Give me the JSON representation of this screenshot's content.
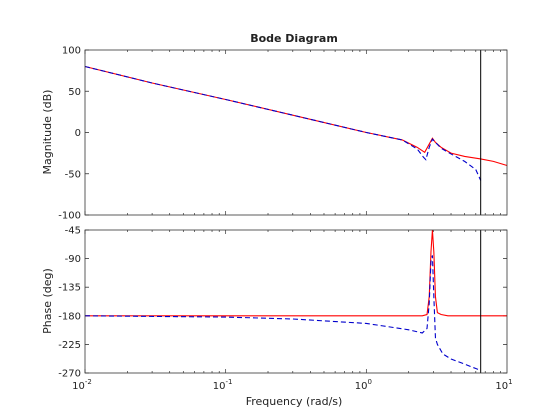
{
  "chart_data": {
    "type": "line",
    "title": "Bode Diagram",
    "xlabel": "Frequency  (rad/s)",
    "x_scale": "log",
    "xlim": [
      0.01,
      10
    ],
    "x_ticks": [
      {
        "value": 0.01,
        "base": "10",
        "exp": "-2"
      },
      {
        "value": 0.1,
        "base": "10",
        "exp": "-1"
      },
      {
        "value": 1,
        "base": "10",
        "exp": "0"
      },
      {
        "value": 10,
        "base": "10",
        "exp": "1"
      }
    ],
    "vertical_marker_x": 6.5,
    "vertical_marker_color": "#000000",
    "grid": false,
    "panels": [
      {
        "ylabel": "Magnitude (dB)",
        "ylim": [
          -100,
          100
        ],
        "y_ticks": [
          "100",
          "50",
          "0",
          "-50",
          "-100"
        ],
        "y_tick_values": [
          100,
          50,
          0,
          -50,
          -100
        ],
        "series": [
          {
            "color": "#ff0000",
            "style": "solid",
            "x": [
              0.01,
              0.03,
              0.1,
              0.3,
              1,
              1.8,
              2.3,
              2.6,
              2.8,
              2.95,
              3.1,
              3.4,
              4,
              5,
              6.5,
              8,
              10
            ],
            "y": [
              80,
              60,
              40,
              21,
              0,
              -9,
              -18,
              -24,
              -14,
              -7,
              -12,
              -18,
              -25,
              -29,
              -32,
              -35,
              -40
            ]
          },
          {
            "color": "#0000cc",
            "style": "dashed",
            "x": [
              0.01,
              0.03,
              0.1,
              0.3,
              1,
              1.8,
              2.3,
              2.55,
              2.65,
              2.8,
              2.95,
              3.1,
              3.4,
              4,
              5,
              6,
              6.5
            ],
            "y": [
              80,
              60,
              40,
              21,
              0,
              -9,
              -20,
              -30,
              -33,
              -18,
              -8,
              -12,
              -19,
              -26,
              -35,
              -45,
              -58
            ]
          }
        ]
      },
      {
        "ylabel": "Phase (deg)",
        "ylim": [
          -270,
          -45
        ],
        "y_ticks": [
          "-45",
          "-90",
          "-135",
          "-180",
          "-225",
          "-270"
        ],
        "y_tick_values": [
          -45,
          -90,
          -135,
          -180,
          -225,
          -270
        ],
        "series": [
          {
            "color": "#ff0000",
            "style": "solid",
            "x": [
              0.01,
              0.1,
              1,
              2.0,
              2.5,
              2.7,
              2.8,
              2.88,
              2.95,
              3.02,
              3.1,
              3.2,
              3.4,
              3.8,
              5,
              10
            ],
            "y": [
              -180,
              -180,
              -180,
              -180,
              -180,
              -178,
              -150,
              -80,
              -45,
              -80,
              -150,
              -175,
              -178,
              -180,
              -180,
              -180
            ]
          },
          {
            "color": "#0000cc",
            "style": "dashed",
            "x": [
              0.01,
              0.1,
              0.3,
              1,
              2.0,
              2.5,
              2.7,
              2.8,
              2.88,
              2.95,
              3.02,
              3.1,
              3.2,
              3.5,
              4,
              5,
              6,
              6.5
            ],
            "y": [
              -180,
              -182,
              -185,
              -192,
              -202,
              -207,
              -200,
              -160,
              -95,
              -85,
              -150,
              -215,
              -225,
              -240,
              -248,
              -256,
              -263,
              -266
            ]
          }
        ]
      }
    ]
  }
}
